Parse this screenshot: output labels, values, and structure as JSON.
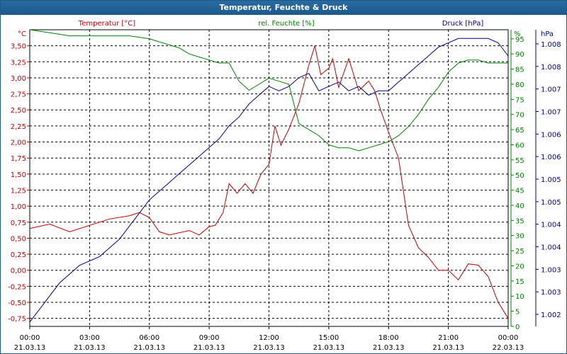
{
  "window": {
    "title": "Temperatur, Feuchte & Druck"
  },
  "chart_data": {
    "type": "line",
    "title": "Temperatur, Feuchte & Druck",
    "colors": {
      "temp": "#c00000",
      "hum": "#008000",
      "press": "#00008b",
      "title_bar": "#1c5a8c"
    },
    "x_ticks": [
      {
        "time": "00:00",
        "date": "21.03.13"
      },
      {
        "time": "03:00",
        "date": "21.03.13"
      },
      {
        "time": "06:00",
        "date": "21.03.13"
      },
      {
        "time": "09:00",
        "date": "21.03.13"
      },
      {
        "time": "12:00",
        "date": "21.03.13"
      },
      {
        "time": "15:00",
        "date": "21.03.13"
      },
      {
        "time": "18:00",
        "date": "21.03.13"
      },
      {
        "time": "21:00",
        "date": "21.03.13"
      },
      {
        "time": "00:00",
        "date": "22.03.13"
      }
    ],
    "x_range_hours": [
      0,
      24
    ],
    "grid": true,
    "axes": {
      "temp": {
        "label": "Temperatur [°C]",
        "unit": "°C",
        "range": [
          -0.875,
          3.75
        ],
        "ticks": [
          "3,50",
          "3,25",
          "3,00",
          "2,75",
          "2,50",
          "2,25",
          "2,00",
          "1,75",
          "1,50",
          "1,25",
          "1,00",
          "0,75",
          "0,50",
          "0,25",
          "0,00",
          "-0,25",
          "-0,50",
          "-0,75"
        ]
      },
      "hum": {
        "label": "rel. Feuchte [%]",
        "unit": "%",
        "range": [
          0,
          98
        ],
        "ticks": [
          "95",
          "90",
          "85",
          "80",
          "75",
          "70",
          "65",
          "60",
          "55",
          "50",
          "45",
          "40",
          "35",
          "30",
          "25",
          "20",
          "15",
          "10",
          "5",
          "0"
        ]
      },
      "press": {
        "label": "Druck [hPa]",
        "unit": "hPa",
        "range": [
          1.0017,
          1.0085
        ],
        "ticks": [
          "1.008",
          "1.008",
          "1.007",
          "1.007",
          "1.006",
          "1.006",
          "1.005",
          "1.005",
          "1.004",
          "1.004",
          "1.003",
          "1.003",
          "1.002"
        ]
      }
    },
    "series": [
      {
        "name": "Temperatur [°C]",
        "axis": "temp",
        "x": [
          0,
          1,
          2,
          3,
          4,
          5,
          5.5,
          6,
          6.5,
          7,
          8,
          8.5,
          9,
          9.3,
          9.7,
          10,
          10.4,
          10.8,
          11.2,
          11.6,
          12,
          12.3,
          12.6,
          13,
          13.5,
          14,
          14.3,
          14.6,
          15,
          15.2,
          15.5,
          16,
          16.5,
          17,
          17.3,
          17.6,
          18,
          18.5,
          19,
          19.5,
          20,
          20.5,
          21,
          21.5,
          22,
          22.5,
          23,
          23.5,
          24
        ],
        "y": [
          0.65,
          0.72,
          0.6,
          0.7,
          0.8,
          0.85,
          0.9,
          0.82,
          0.6,
          0.55,
          0.62,
          0.55,
          0.68,
          0.7,
          0.9,
          1.35,
          1.2,
          1.35,
          1.2,
          1.5,
          1.65,
          2.25,
          1.95,
          2.2,
          2.6,
          3.2,
          3.5,
          3.05,
          3.15,
          3.3,
          2.85,
          3.3,
          2.8,
          2.95,
          2.8,
          2.5,
          2.15,
          1.75,
          0.7,
          0.35,
          0.2,
          0.0,
          0.0,
          -0.15,
          0.1,
          0.08,
          -0.1,
          -0.5,
          -0.75
        ]
      },
      {
        "name": "rel. Feuchte [%]",
        "axis": "hum",
        "x": [
          0,
          1,
          2,
          3,
          4,
          5,
          6,
          6.5,
          7,
          7.5,
          8,
          8.5,
          9,
          9.5,
          10,
          10.5,
          11,
          11.5,
          12,
          12.5,
          13,
          13.5,
          14,
          14.5,
          15,
          15.5,
          16,
          16.5,
          17,
          17.5,
          18,
          18.5,
          19,
          19.5,
          20,
          20.5,
          21,
          21.5,
          22,
          22.5,
          23,
          23.5,
          24
        ],
        "y": [
          98,
          97,
          96,
          96,
          96,
          96,
          95,
          94,
          93,
          92,
          90,
          89,
          88,
          87,
          87,
          81,
          78,
          80,
          82,
          81,
          80,
          67,
          65,
          63,
          60,
          59,
          59,
          58,
          59,
          60,
          61,
          63,
          66,
          70,
          75,
          79,
          84,
          87,
          88,
          88,
          87,
          87,
          87
        ]
      },
      {
        "name": "Druck [hPa]",
        "axis": "press",
        "x": [
          0,
          0.5,
          1,
          1.5,
          2,
          2.5,
          3,
          3.5,
          4,
          4.5,
          5,
          5.5,
          6,
          6.5,
          7,
          7.5,
          8,
          8.5,
          9,
          9.5,
          10,
          10.5,
          11,
          11.5,
          12,
          12.5,
          13,
          13.5,
          14,
          14.5,
          15,
          15.5,
          16,
          16.5,
          17,
          17.5,
          18,
          18.5,
          19,
          19.5,
          20,
          20.5,
          21,
          21.5,
          22,
          22.5,
          23,
          23.5,
          24
        ],
        "y": [
          1.0018,
          1.0021,
          1.0024,
          1.0027,
          1.0029,
          1.0031,
          1.0032,
          1.0033,
          1.0035,
          1.0037,
          1.004,
          1.0043,
          1.0046,
          1.0048,
          1.005,
          1.0052,
          1.0054,
          1.0056,
          1.0058,
          1.006,
          1.0063,
          1.0065,
          1.0068,
          1.007,
          1.0072,
          1.0071,
          1.0072,
          1.0074,
          1.0075,
          1.0071,
          1.0072,
          1.0073,
          1.0071,
          1.0072,
          1.007,
          1.0071,
          1.0071,
          1.0073,
          1.0075,
          1.0077,
          1.0079,
          1.0081,
          1.0082,
          1.0083,
          1.0083,
          1.0083,
          1.0083,
          1.0082,
          1.0079
        ]
      }
    ]
  }
}
